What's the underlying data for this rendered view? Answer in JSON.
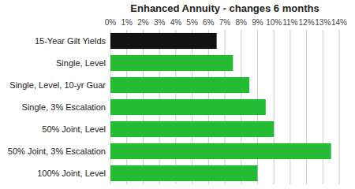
{
  "chart_data": {
    "type": "bar",
    "orientation": "horizontal",
    "title": "Enhanced Annuity - changes 6 months",
    "categories": [
      "15-Year Gilt Yields",
      "Single, Level",
      "Single, Level, 10-yr Guar",
      "Single, 3% Escalation",
      "50% Joint, Level",
      "50% Joint, 3% Escalation",
      "100% Joint, Level"
    ],
    "values": [
      6.5,
      7.5,
      8.5,
      9.5,
      10.0,
      13.5,
      9.0
    ],
    "colors": [
      "#111111",
      "#22bb33",
      "#22bb33",
      "#22bb33",
      "#22bb33",
      "#22bb33",
      "#22bb33"
    ],
    "xlim": [
      0,
      14
    ],
    "xticks": [
      {
        "value": 0,
        "label": "0%"
      },
      {
        "value": 1,
        "label": "1%"
      },
      {
        "value": 2,
        "label": "2%"
      },
      {
        "value": 3,
        "label": "3%"
      },
      {
        "value": 4,
        "label": "4%"
      },
      {
        "value": 5,
        "label": "5%"
      },
      {
        "value": 6,
        "label": "6%"
      },
      {
        "value": 7,
        "label": "7%"
      },
      {
        "value": 8,
        "label": "8%"
      },
      {
        "value": 9,
        "label": "9%"
      },
      {
        "value": 10,
        "label": "10%"
      },
      {
        "value": 11,
        "label": "11%"
      },
      {
        "value": 12,
        "label": "12%"
      },
      {
        "value": 13,
        "label": "13%"
      },
      {
        "value": 14,
        "label": "14%"
      }
    ],
    "grid": true
  }
}
